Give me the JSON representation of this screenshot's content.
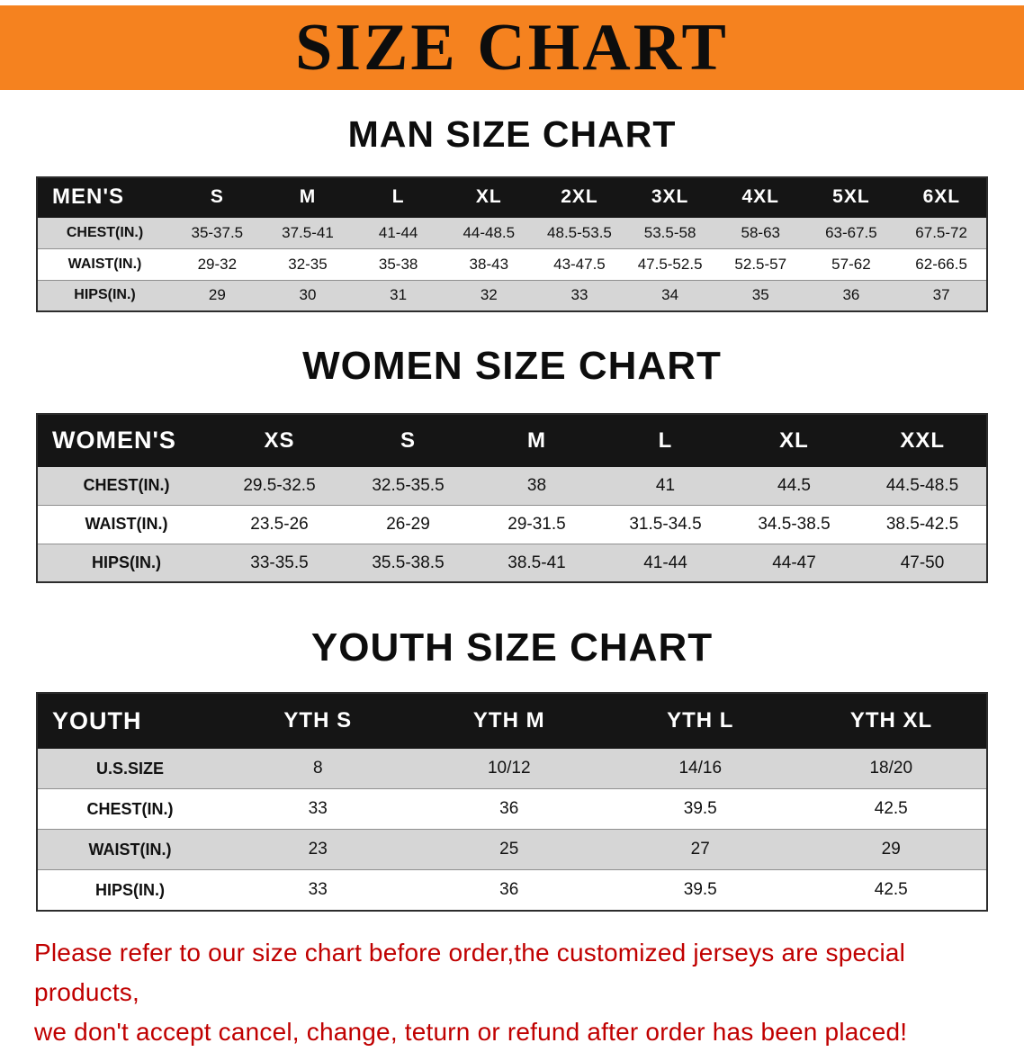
{
  "banner": {
    "title": "SIZE CHART",
    "bg_color": "#f5821f",
    "text_color": "#0d0d0d"
  },
  "colors": {
    "header_row_bg": "#151515",
    "stripe_gray": "#d6d6d6",
    "disclaimer_red": "#c00000"
  },
  "sections": [
    {
      "heading": "MAN SIZE CHART",
      "table": {
        "header": [
          "MEN'S",
          "S",
          "M",
          "L",
          "XL",
          "2XL",
          "3XL",
          "4XL",
          "5XL",
          "6XL"
        ],
        "rows": [
          [
            "CHEST(IN.)",
            "35-37.5",
            "37.5-41",
            "41-44",
            "44-48.5",
            "48.5-53.5",
            "53.5-58",
            "58-63",
            "63-67.5",
            "67.5-72"
          ],
          [
            "WAIST(IN.)",
            "29-32",
            "32-35",
            "35-38",
            "38-43",
            "43-47.5",
            "47.5-52.5",
            "52.5-57",
            "57-62",
            "62-66.5"
          ],
          [
            "HIPS(IN.)",
            "29",
            "30",
            "31",
            "32",
            "33",
            "34",
            "35",
            "36",
            "37"
          ]
        ]
      }
    },
    {
      "heading": "WOMEN SIZE CHART",
      "table": {
        "header": [
          "WOMEN'S",
          "XS",
          "S",
          "M",
          "L",
          "XL",
          "XXL"
        ],
        "rows": [
          [
            "CHEST(IN.)",
            "29.5-32.5",
            "32.5-35.5",
            "38",
            "41",
            "44.5",
            "44.5-48.5"
          ],
          [
            "WAIST(IN.)",
            "23.5-26",
            "26-29",
            "29-31.5",
            "31.5-34.5",
            "34.5-38.5",
            "38.5-42.5"
          ],
          [
            "HIPS(IN.)",
            "33-35.5",
            "35.5-38.5",
            "38.5-41",
            "41-44",
            "44-47",
            "47-50"
          ]
        ]
      }
    },
    {
      "heading": "YOUTH SIZE CHART",
      "table": {
        "header": [
          "YOUTH",
          "YTH S",
          "YTH M",
          "YTH L",
          "YTH XL"
        ],
        "rows": [
          [
            "U.S.SIZE",
            "8",
            "10/12",
            "14/16",
            "18/20"
          ],
          [
            "CHEST(IN.)",
            "33",
            "36",
            "39.5",
            "42.5"
          ],
          [
            "WAIST(IN.)",
            "23",
            "25",
            "27",
            "29"
          ],
          [
            "HIPS(IN.)",
            "33",
            "36",
            "39.5",
            "42.5"
          ]
        ]
      }
    }
  ],
  "disclaimer": {
    "line1": "Please refer to our size chart before order,the customized jerseys are special products,",
    "line2": "we don't accept cancel, change, teturn or refund after order has been placed!"
  }
}
